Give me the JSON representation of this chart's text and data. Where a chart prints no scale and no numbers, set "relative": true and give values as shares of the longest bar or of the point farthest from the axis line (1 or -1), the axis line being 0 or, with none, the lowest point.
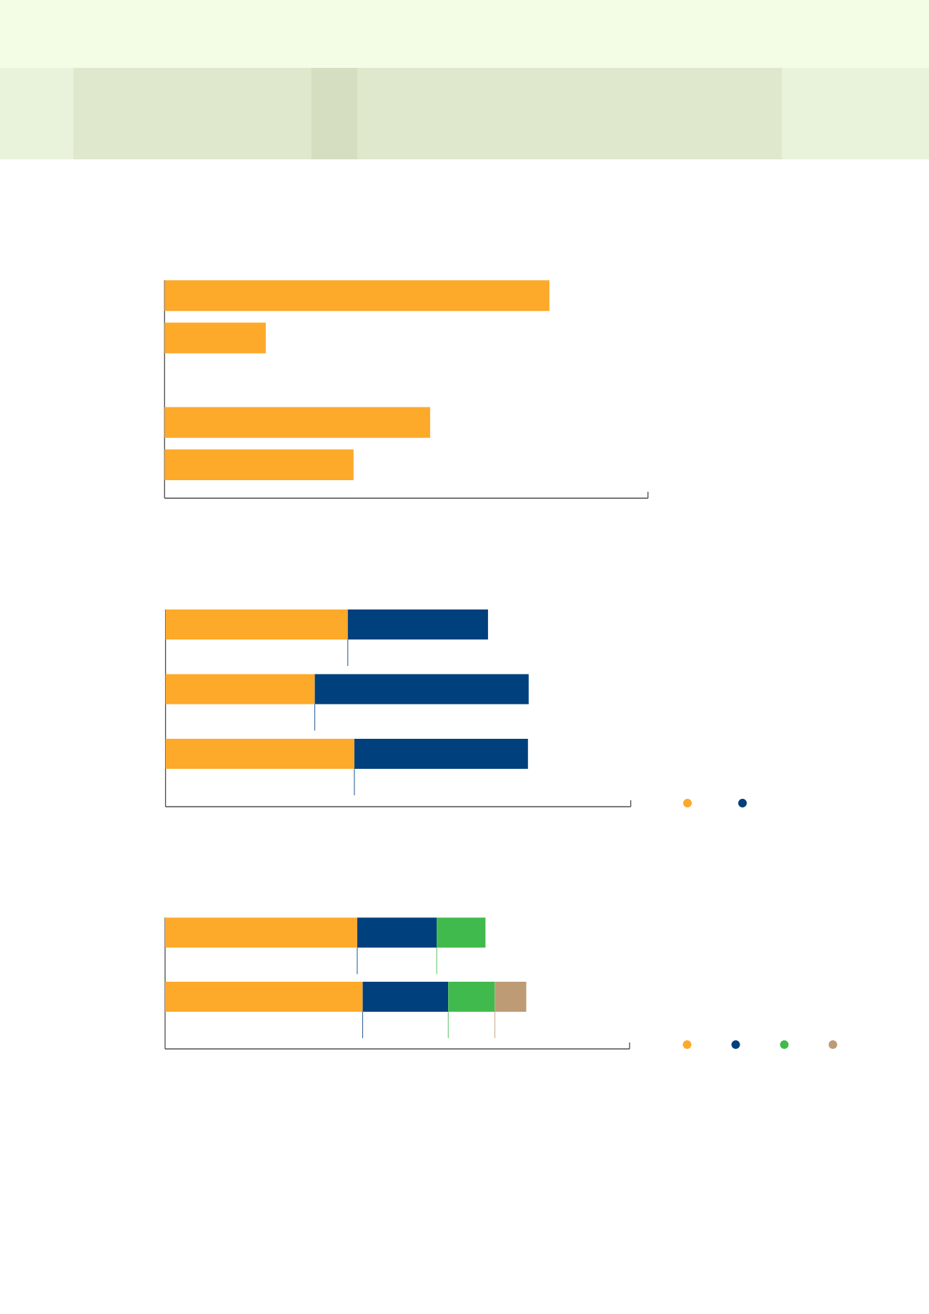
{
  "chart_data": [
    {
      "type": "bar",
      "orientation": "horizontal",
      "relative": true,
      "categories": [
        null,
        null,
        null,
        null
      ],
      "values": [
        1,
        0.263,
        0.69,
        0.491
      ],
      "color": "#fda92a"
    },
    {
      "type": "bar",
      "orientation": "horizontal",
      "stacked": true,
      "relative": true,
      "categories": [
        null,
        null,
        null
      ],
      "series": [
        {
          "color": "#fda92a",
          "values": [
            0.502,
            0.411,
            0.52
          ]
        },
        {
          "color": "#00407d",
          "values": [
            0.386,
            0.589,
            0.478
          ]
        }
      ]
    },
    {
      "type": "bar",
      "orientation": "horizontal",
      "stacked": true,
      "relative": true,
      "categories": [
        null,
        null
      ],
      "series": [
        {
          "color": "#fda92a",
          "values": [
            0.532,
            0.547
          ]
        },
        {
          "color": "#00407d",
          "values": [
            0.22,
            0.237
          ]
        },
        {
          "color": "#41ba4d",
          "values": [
            0.135,
            0.129
          ]
        },
        {
          "color": "#bd9b75",
          "values": [
            null,
            0.087
          ]
        }
      ]
    }
  ]
}
